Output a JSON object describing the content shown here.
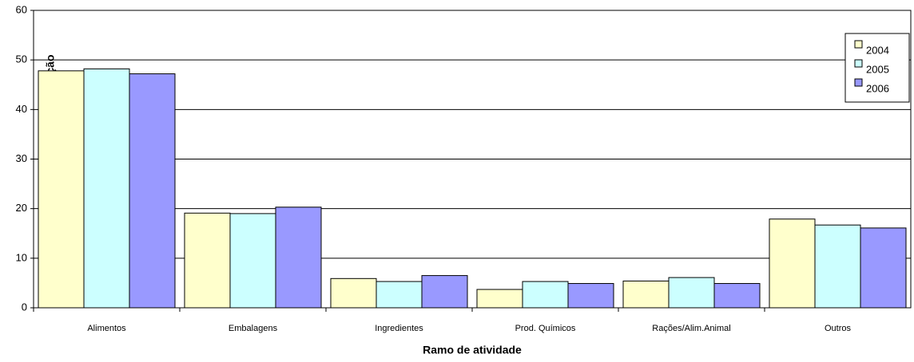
{
  "chart_data": {
    "type": "bar",
    "x_label": "Ramo de atividade",
    "y_label": "% de participação",
    "categories": [
      "Alimentos",
      "Embalagens",
      "Ingredientes",
      "Prod. Químicos",
      "Rações/Alim.Animal",
      "Outros"
    ],
    "series": [
      {
        "name": "2004",
        "color": "#ffffcc",
        "values": [
          47.8,
          19.1,
          5.9,
          3.7,
          5.4,
          17.9
        ]
      },
      {
        "name": "2005",
        "color": "#ccffff",
        "values": [
          48.2,
          19.0,
          5.3,
          5.3,
          6.1,
          16.7
        ]
      },
      {
        "name": "2006",
        "color": "#9999ff",
        "values": [
          47.2,
          20.3,
          6.5,
          4.9,
          4.9,
          16.1
        ]
      }
    ],
    "ylim": [
      0,
      60
    ],
    "yticks": [
      0,
      10,
      20,
      30,
      40,
      50,
      60
    ],
    "grid": true,
    "legend": "top-right"
  }
}
